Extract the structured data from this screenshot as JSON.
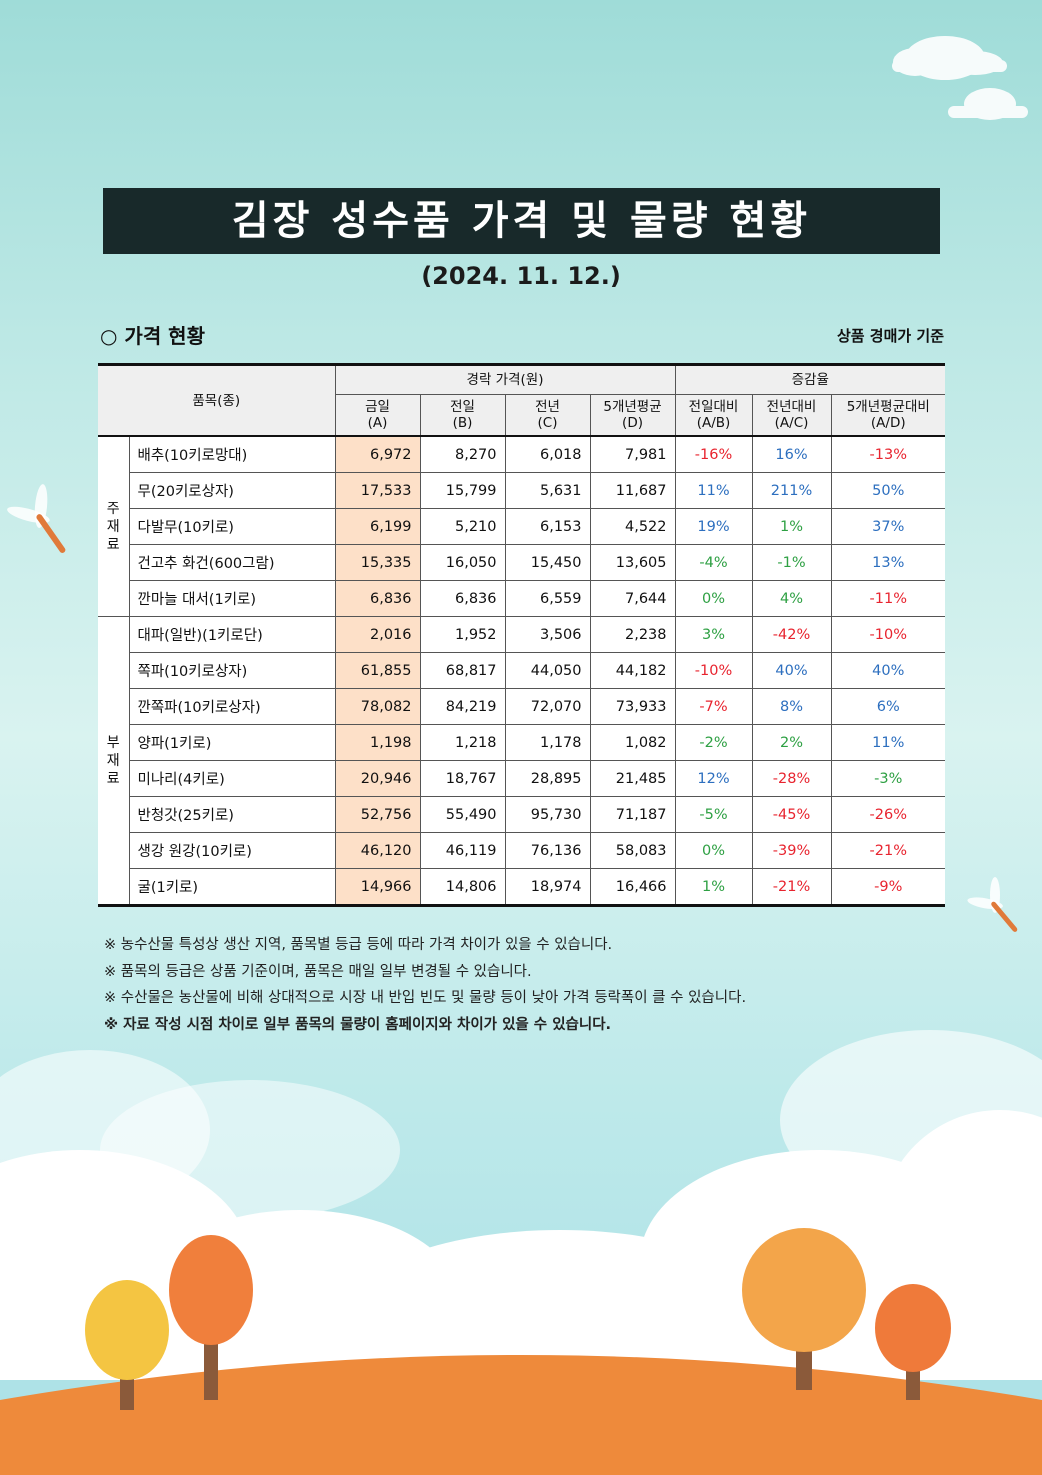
{
  "title": "김장 성수품 가격 및 물량 현황",
  "date": "(2024. 11. 12.)",
  "section": "○ 가격 현황",
  "basis": "상품 경매가 기준",
  "table": {
    "header_item": "품목(종)",
    "header_price_group": "경락 가격(원)",
    "header_rate_group": "증감율",
    "price_cols": [
      {
        "name": "금일",
        "sub": "(A)"
      },
      {
        "name": "전일",
        "sub": "(B)"
      },
      {
        "name": "전년",
        "sub": "(C)"
      },
      {
        "name": "5개년평균",
        "sub": "(D)"
      }
    ],
    "rate_cols": [
      {
        "name": "전일대비",
        "sub": "(A/B)"
      },
      {
        "name": "전년대비",
        "sub": "(A/C)"
      },
      {
        "name": "5개년평균대비",
        "sub": "(A/D)"
      }
    ],
    "groups": [
      {
        "label": [
          "주",
          "재",
          "료"
        ],
        "rows": [
          {
            "item": "배추(10키로망대)",
            "a": "6,972",
            "b": "8,270",
            "c": "6,018",
            "d": "7,981",
            "ab": "-16%",
            "ac": "16%",
            "ad": "-13%"
          },
          {
            "item": "무(20키로상자)",
            "a": "17,533",
            "b": "15,799",
            "c": "5,631",
            "d": "11,687",
            "ab": "11%",
            "ac": "211%",
            "ad": "50%"
          },
          {
            "item": "다발무(10키로)",
            "a": "6,199",
            "b": "5,210",
            "c": "6,153",
            "d": "4,522",
            "ab": "19%",
            "ac": "1%",
            "ad": "37%"
          },
          {
            "item": "건고추 화건(600그람)",
            "a": "15,335",
            "b": "16,050",
            "c": "15,450",
            "d": "13,605",
            "ab": "-4%",
            "ac": "-1%",
            "ad": "13%"
          },
          {
            "item": "깐마늘 대서(1키로)",
            "a": "6,836",
            "b": "6,836",
            "c": "6,559",
            "d": "7,644",
            "ab": "0%",
            "ac": "4%",
            "ad": "-11%"
          }
        ]
      },
      {
        "label": [
          "부",
          "재",
          "료"
        ],
        "rows": [
          {
            "item": "대파(일반)(1키로단)",
            "a": "2,016",
            "b": "1,952",
            "c": "3,506",
            "d": "2,238",
            "ab": "3%",
            "ac": "-42%",
            "ad": "-10%"
          },
          {
            "item": "쪽파(10키로상자)",
            "a": "61,855",
            "b": "68,817",
            "c": "44,050",
            "d": "44,182",
            "ab": "-10%",
            "ac": "40%",
            "ad": "40%"
          },
          {
            "item": "깐쪽파(10키로상자)",
            "a": "78,082",
            "b": "84,219",
            "c": "72,070",
            "d": "73,933",
            "ab": "-7%",
            "ac": "8%",
            "ad": "6%"
          },
          {
            "item": "양파(1키로)",
            "a": "1,198",
            "b": "1,218",
            "c": "1,178",
            "d": "1,082",
            "ab": "-2%",
            "ac": "2%",
            "ad": "11%"
          },
          {
            "item": "미나리(4키로)",
            "a": "20,946",
            "b": "18,767",
            "c": "28,895",
            "d": "21,485",
            "ab": "12%",
            "ac": "-28%",
            "ad": "-3%"
          },
          {
            "item": "반청갓(25키로)",
            "a": "52,756",
            "b": "55,490",
            "c": "95,730",
            "d": "71,187",
            "ab": "-5%",
            "ac": "-45%",
            "ad": "-26%"
          },
          {
            "item": "생강 원강(10키로)",
            "a": "46,120",
            "b": "46,119",
            "c": "76,136",
            "d": "58,083",
            "ab": "0%",
            "ac": "-39%",
            "ad": "-21%"
          },
          {
            "item": "굴(1키로)",
            "a": "14,966",
            "b": "14,806",
            "c": "18,974",
            "d": "16,466",
            "ab": "1%",
            "ac": "-21%",
            "ad": "-9%"
          }
        ]
      }
    ]
  },
  "rate_colors": {
    "red": "#e8242f",
    "blue": "#2d6fbf",
    "green": "#2ea043"
  },
  "rate_color_keys": {
    "0": {
      "ab": "red",
      "ac": "blue",
      "ad": "red"
    },
    "1": {
      "ab": "blue",
      "ac": "blue",
      "ad": "blue"
    },
    "2": {
      "ab": "blue",
      "ac": "green",
      "ad": "blue"
    },
    "3": {
      "ab": "green",
      "ac": "green",
      "ad": "blue"
    },
    "4": {
      "ab": "green",
      "ac": "green",
      "ad": "red"
    },
    "5": {
      "ab": "green",
      "ac": "red",
      "ad": "red"
    },
    "6": {
      "ab": "red",
      "ac": "blue",
      "ad": "blue"
    },
    "7": {
      "ab": "red",
      "ac": "blue",
      "ad": "blue"
    },
    "8": {
      "ab": "green",
      "ac": "green",
      "ad": "blue"
    },
    "9": {
      "ab": "blue",
      "ac": "red",
      "ad": "green"
    },
    "10": {
      "ab": "green",
      "ac": "red",
      "ad": "red"
    },
    "11": {
      "ab": "green",
      "ac": "red",
      "ad": "red"
    },
    "12": {
      "ab": "green",
      "ac": "red",
      "ad": "red"
    }
  },
  "notes": [
    "※ 농수산물 특성상 생산 지역, 품목별 등급 등에 따라 가격 차이가 있을 수 있습니다.",
    "※ 품목의 등급은 상품 기준이며, 품목은 매일 일부 변경될 수 있습니다.",
    "※ 수산물은 농산물에 비해 상대적으로 시장 내 반입 빈도 및 물량 등이 낮아 가격 등락폭이 클 수 있습니다."
  ],
  "note_bold": "※ 자료 작성 시점 차이로 일부 품목의 물량이 홈페이지와 차이가 있을 수 있습니다."
}
